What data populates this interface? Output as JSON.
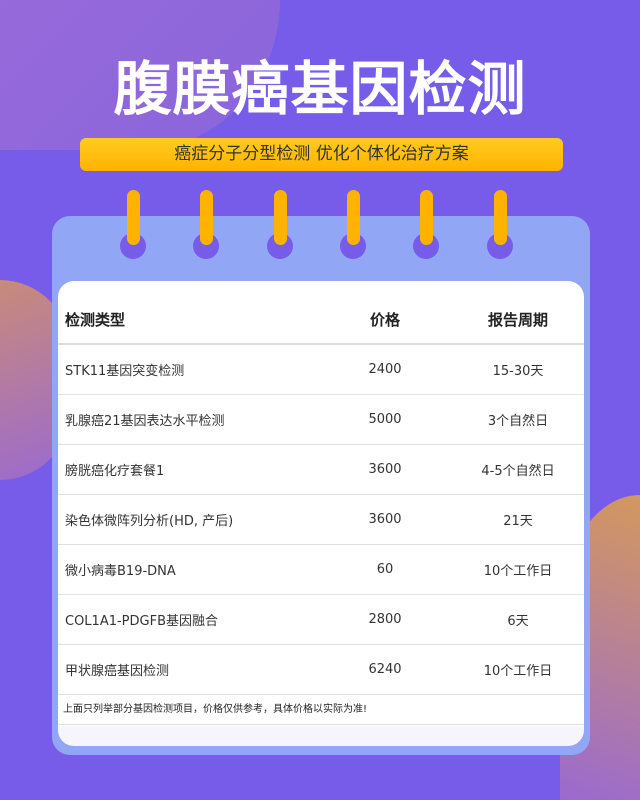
{
  "title": "腹膜癌基因检测",
  "banner": "癌症分子分型检测 优化个体化治疗方案",
  "table": {
    "headers": [
      "检测类型",
      "价格",
      "报告周期"
    ],
    "rows": [
      [
        "STK11基因突变检测",
        "2400",
        "15-30天"
      ],
      [
        "乳腺癌21基因表达水平检测",
        "5000",
        "3个自然日"
      ],
      [
        "膀胱癌化疗套餐1",
        "3600",
        "4-5个自然日"
      ],
      [
        "染色体微阵列分析(HD, 产后)",
        "3600",
        "21天"
      ],
      [
        "微小病毒B19-DNA",
        "60",
        "10个工作日"
      ],
      [
        "COL1A1-PDGFB基因融合",
        "2800",
        "6天"
      ],
      [
        "甲状腺癌基因检测",
        "6240",
        "10个工作日"
      ]
    ]
  },
  "note": "上面只列举部分基因检测项目，价格仅供参考，具体价格以实际为准!",
  "colors": {
    "background": "#775ce9",
    "accent": "#ffb300",
    "card": "#92a6f6"
  }
}
